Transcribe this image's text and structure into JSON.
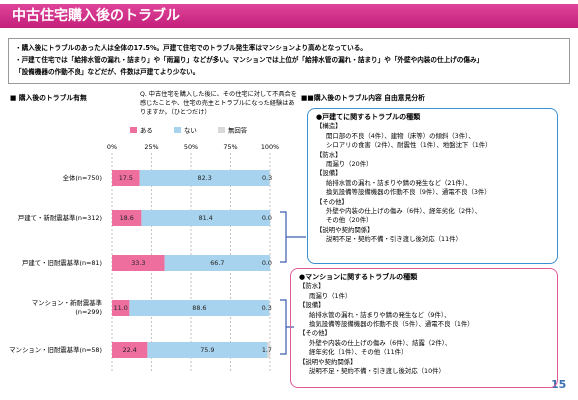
{
  "header": {
    "title": "中古住宅購入後のトラブル"
  },
  "summary": [
    "・購入後にトラブルのあった人は全体の17.5%。戸建て住宅でのトラブル発生率はマンションより高めとなっている。",
    "・戸建て住宅では「給排水管の漏れ・詰まり」や「雨漏り」などが多い。マンションでは上位が「給排水管の漏れ・詰まり」や「外壁や内装の仕上げの傷み」",
    "「設備機器の作動不良」などだが、件数は戸建てより少ない。"
  ],
  "chart_data": {
    "type": "stacked-bar-horizontal",
    "title": "■ 購入後のトラブル有無",
    "subtitle": "Q. 中古住宅を購入した後に、その住宅に対して不具合を感じたことや、住宅の売主とトラブルになった経験はありますか。（ひとつだけ）",
    "categories": [
      "全体(n=750)",
      "戸建て・新耐震基準(n=312)",
      "戸建て・旧耐震基準(n=81)",
      "マンション・新耐震基準(n=299)",
      "マンション・旧耐震基準(n=58)"
    ],
    "series": [
      {
        "name": "ある",
        "color": "#ee6f9d",
        "values": [
          17.5,
          18.6,
          33.3,
          11.0,
          22.4
        ],
        "value_labels": [
          "17.5",
          "18.6",
          "33.3",
          "11.0",
          "22.4"
        ]
      },
      {
        "name": "ない",
        "color": "#a8d3ee",
        "values": [
          82.3,
          81.4,
          66.7,
          88.6,
          75.9
        ]
      },
      {
        "name": "無回答",
        "color": "#d9d9d9",
        "values": [
          0.3,
          0.0,
          0.0,
          0.3,
          1.7
        ],
        "value_labels": [
          "0.3",
          "0.0",
          "0.0",
          "0.3",
          "1.7"
        ]
      }
    ],
    "xlim": [
      0,
      100
    ],
    "xticks": [
      {
        "value": 0,
        "label": "0%"
      },
      {
        "value": 25,
        "label": "25%"
      },
      {
        "value": 50,
        "label": "50%"
      },
      {
        "value": 75,
        "label": "75%"
      },
      {
        "value": 100,
        "label": "100%"
      }
    ],
    "grid": true
  },
  "analysis": {
    "title": "■■購入後のトラブル内容 自由意見分析",
    "boxes": [
      {
        "title": "●戸建てに関するトラブルの種類",
        "sections": [
          {
            "heading": "【構造】",
            "lines": [
              "開口部の不良（4件）、建物（床等）の傾斜（3件）、",
              "シロアリの食害（2件）、耐震性（1件）、地盤沈下（1件）"
            ]
          },
          {
            "heading": "【防水】",
            "lines": [
              "雨漏り（20件）"
            ]
          },
          {
            "heading": "【設備】",
            "lines": [
              "給排水管の漏れ・詰まりや錆の発生など（21件）、",
              "換気設備等設備機器の作動不良（9件）、通電不良（3件）"
            ]
          },
          {
            "heading": "【その他】",
            "lines": [
              "外壁や内装の仕上げの傷み（6件）、経年劣化（2件）、",
              "その他（20件）"
            ]
          },
          {
            "heading": "【説明や契約関係】",
            "lines": [
              "説明不足・契約不備・引き渡し後対応（11件）"
            ]
          }
        ]
      },
      {
        "title": "●マンションに関するトラブルの種類",
        "sections": [
          {
            "heading": "【防水】",
            "lines": [
              "雨漏り（1件）"
            ]
          },
          {
            "heading": "【設備】",
            "lines": [
              "給排水管の漏れ・詰まりや錆の発生など（9件）、",
              "換気設備等設備機器の作動不良（5件）、通電不良（1件）"
            ]
          },
          {
            "heading": "【その他】",
            "lines": [
              "外壁や内装の仕上げの傷み（6件）、結露（2件）、",
              "経年劣化（1件）、その他（11件）"
            ]
          },
          {
            "heading": "【説明や契約関係】",
            "lines": [
              "説明不足・契約不備・引き渡し後対応（10件）"
            ]
          }
        ]
      }
    ]
  },
  "page_number": "15"
}
